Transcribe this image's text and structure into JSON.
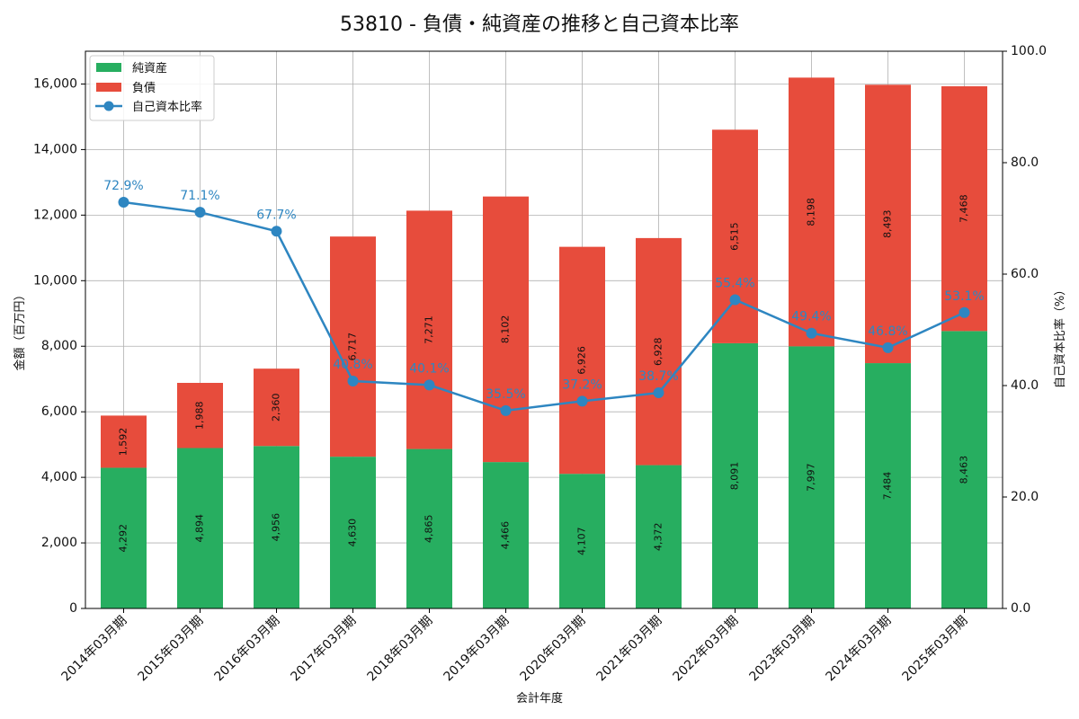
{
  "chart_data": {
    "type": "bar",
    "title": "53810 - 負債・純資産の推移と自己資本比率",
    "xlabel": "会計年度",
    "ylabel": "金額（百万円）",
    "y2label": "自己資本比率（%）",
    "ylim": [
      0,
      17000
    ],
    "y2lim": [
      0,
      100
    ],
    "yticks": [
      "0",
      "2,000",
      "4,000",
      "6,000",
      "8,000",
      "10,000",
      "12,000",
      "14,000",
      "16,000"
    ],
    "y2ticks": [
      "0.0",
      "20.0",
      "40.0",
      "60.0",
      "80.0",
      "100.0"
    ],
    "grid": true,
    "legend_position": "top-left",
    "categories": [
      "2014年03月期",
      "2015年03月期",
      "2016年03月期",
      "2017年03月期",
      "2018年03月期",
      "2019年03月期",
      "2020年03月期",
      "2021年03月期",
      "2022年03月期",
      "2023年03月期",
      "2024年03月期",
      "2025年03月期"
    ],
    "series": [
      {
        "name": "純資産",
        "kind": "bar",
        "color": "#27ae60",
        "values": [
          4292,
          4894,
          4956,
          4630,
          4865,
          4466,
          4107,
          4372,
          8091,
          7997,
          7484,
          8463
        ],
        "labels": [
          "4,292",
          "4,894",
          "4,956",
          "4,630",
          "4,865",
          "4,466",
          "4,107",
          "4,372",
          "8,091",
          "7,997",
          "7,484",
          "8,463"
        ]
      },
      {
        "name": "負債",
        "kind": "bar",
        "color": "#e74c3c",
        "values": [
          1592,
          1988,
          2360,
          6717,
          7271,
          8102,
          6926,
          6928,
          6515,
          8198,
          8493,
          7468
        ],
        "labels": [
          "1,592",
          "1,988",
          "2,360",
          "6,717",
          "7,271",
          "8,102",
          "6,926",
          "6,928",
          "6,515",
          "8,198",
          "8,493",
          "7,468"
        ]
      },
      {
        "name": "自己資本比率",
        "kind": "line",
        "axis": "right",
        "color": "#2e86c1",
        "values": [
          72.9,
          71.1,
          67.7,
          40.8,
          40.1,
          35.5,
          37.2,
          38.7,
          55.4,
          49.4,
          46.8,
          53.1
        ],
        "labels": [
          "72.9%",
          "71.1%",
          "67.7%",
          "40.8%",
          "40.1%",
          "35.5%",
          "37.2%",
          "38.7%",
          "55.4%",
          "49.4%",
          "46.8%",
          "53.1%"
        ]
      }
    ]
  }
}
